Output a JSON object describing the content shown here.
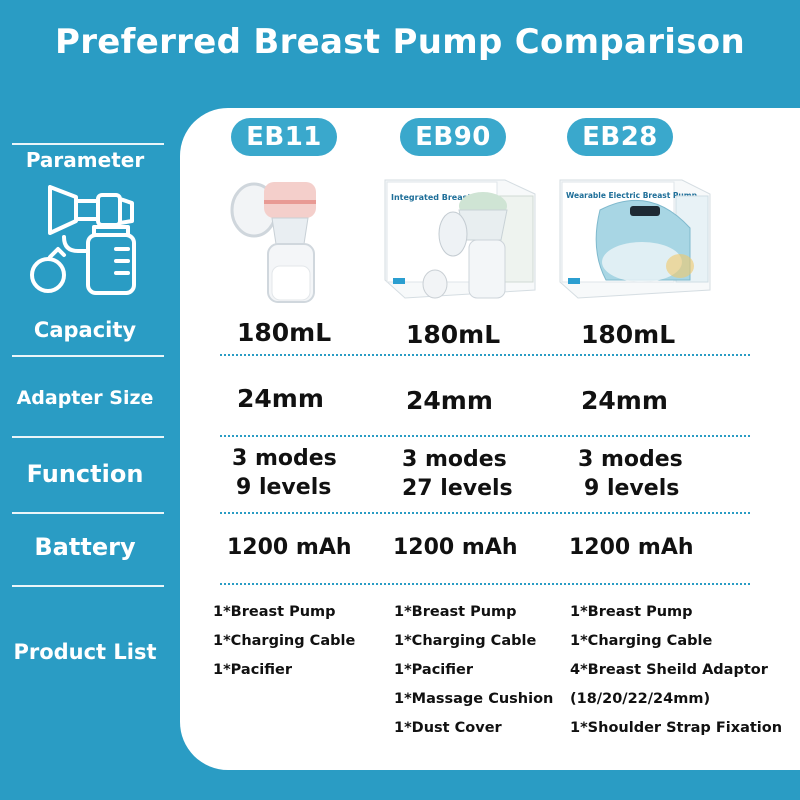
{
  "title": "Preferred Breast Pump Comparison",
  "colors": {
    "primary": "#2a9cc4",
    "pill": "#3aa8cc",
    "panel": "#ffffff"
  },
  "sidebar": {
    "parameter": "Parameter",
    "capacity": "Capacity",
    "adapter_size": "Adapter Size",
    "function": "Function",
    "battery": "Battery",
    "product_list": "Product List"
  },
  "products": [
    {
      "model": "EB11",
      "capacity": "180mL",
      "adapter": "24mm",
      "modes": "3 modes",
      "levels": "9 levels",
      "battery": "1200 mAh",
      "list": [
        "1*Breast Pump",
        "1*Charging Cable",
        "1*Pacifier"
      ]
    },
    {
      "model": "EB90",
      "box_label": "Integrated Breast Pump",
      "capacity": "180mL",
      "adapter": "24mm",
      "modes": "3 modes",
      "levels": "27 levels",
      "battery": "1200 mAh",
      "list": [
        "1*Breast Pump",
        "1*Charging Cable",
        "1*Pacifier",
        "1*Massage Cushion",
        "1*Dust Cover"
      ]
    },
    {
      "model": "EB28",
      "box_label": "Wearable Electric Breast Pump",
      "capacity": "180mL",
      "adapter": "24mm",
      "modes": "3 modes",
      "levels": "9 levels",
      "battery": "1200 mAh",
      "list": [
        "1*Breast Pump",
        "1*Charging Cable",
        "4*Breast Sheild Adaptor",
        "(18/20/22/24mm)",
        "1*Shoulder Strap Fixation"
      ]
    }
  ]
}
